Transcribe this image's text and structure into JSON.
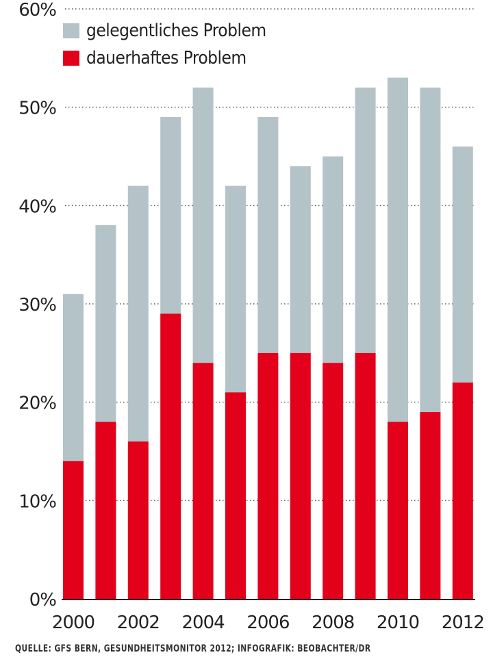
{
  "chart_data": {
    "type": "bar",
    "stacked": true,
    "categories": [
      "2000",
      "2001",
      "2002",
      "2003",
      "2004",
      "2005",
      "2006",
      "2007",
      "2008",
      "2009",
      "2010",
      "2011",
      "2012"
    ],
    "x_tick_labels": [
      "2000",
      "2002",
      "2004",
      "2006",
      "2008",
      "2010",
      "2012"
    ],
    "series": [
      {
        "name": "dauerhaftes Problem",
        "color": "#e2001a",
        "values": [
          14,
          18,
          16,
          29,
          24,
          21,
          25,
          25,
          24,
          25,
          18,
          19,
          22
        ]
      },
      {
        "name": "gelegentliches Problem",
        "color": "#b4c3c7",
        "values": [
          17,
          20,
          26,
          20,
          28,
          21,
          24,
          19,
          21,
          27,
          35,
          33,
          24
        ]
      }
    ],
    "totals": [
      31,
      38,
      42,
      49,
      52,
      42,
      49,
      44,
      45,
      52,
      53,
      52,
      46
    ],
    "ylim": [
      0,
      60
    ],
    "y_ticks": [
      "0%",
      "10%",
      "20%",
      "30%",
      "40%",
      "50%",
      "60%"
    ],
    "grid": true,
    "legend_position": "top-left",
    "legend": [
      "gelegentliches Problem",
      "dauerhaftes Problem"
    ],
    "source": "QUELLE: GFS BERN, GESUNDHEITSMONITOR 2012; INFOGRAFIK: BEOBACHTER/DR"
  }
}
